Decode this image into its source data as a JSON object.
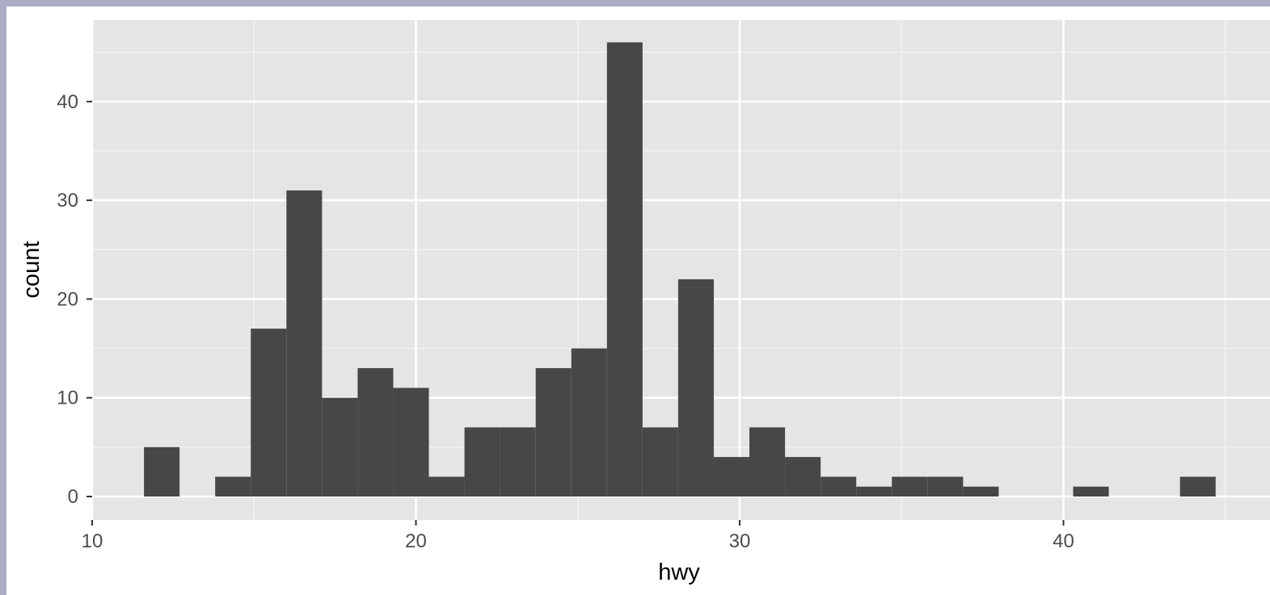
{
  "chart_data": {
    "type": "bar",
    "xlabel": "hwy",
    "ylabel": "count",
    "xlim": [
      10,
      45.5
    ],
    "ylim": [
      0,
      46
    ],
    "x_ticks": [
      10,
      20,
      30,
      40
    ],
    "y_ticks": [
      0,
      10,
      20,
      30,
      40
    ],
    "grid": true,
    "bin_width": 1.1,
    "bins": [
      {
        "start": 11.6,
        "end": 12.7,
        "count": 5
      },
      {
        "start": 13.8,
        "end": 14.9,
        "count": 2
      },
      {
        "start": 14.9,
        "end": 16.0,
        "count": 17
      },
      {
        "start": 16.0,
        "end": 17.1,
        "count": 31
      },
      {
        "start": 17.1,
        "end": 18.2,
        "count": 10
      },
      {
        "start": 18.2,
        "end": 19.3,
        "count": 13
      },
      {
        "start": 19.3,
        "end": 20.4,
        "count": 11
      },
      {
        "start": 20.4,
        "end": 21.5,
        "count": 2
      },
      {
        "start": 21.5,
        "end": 22.6,
        "count": 7
      },
      {
        "start": 22.6,
        "end": 23.7,
        "count": 7
      },
      {
        "start": 23.7,
        "end": 24.8,
        "count": 13
      },
      {
        "start": 24.8,
        "end": 25.9,
        "count": 15
      },
      {
        "start": 25.9,
        "end": 27.0,
        "count": 46
      },
      {
        "start": 27.0,
        "end": 28.1,
        "count": 7
      },
      {
        "start": 28.1,
        "end": 29.2,
        "count": 22
      },
      {
        "start": 29.2,
        "end": 30.3,
        "count": 4
      },
      {
        "start": 30.3,
        "end": 31.4,
        "count": 7
      },
      {
        "start": 31.4,
        "end": 32.5,
        "count": 4
      },
      {
        "start": 32.5,
        "end": 33.6,
        "count": 2
      },
      {
        "start": 33.6,
        "end": 34.7,
        "count": 1
      },
      {
        "start": 34.7,
        "end": 35.8,
        "count": 2
      },
      {
        "start": 35.8,
        "end": 36.9,
        "count": 2
      },
      {
        "start": 36.9,
        "end": 38.0,
        "count": 1
      },
      {
        "start": 40.3,
        "end": 41.4,
        "count": 1
      },
      {
        "start": 43.6,
        "end": 44.7,
        "count": 2
      }
    ]
  },
  "style": {
    "panel_bg": "#e5e5e5",
    "grid_major": "#ffffff",
    "grid_minor": "#f2f2f2",
    "bar_fill": "#474747",
    "tick_color": "#333333"
  }
}
